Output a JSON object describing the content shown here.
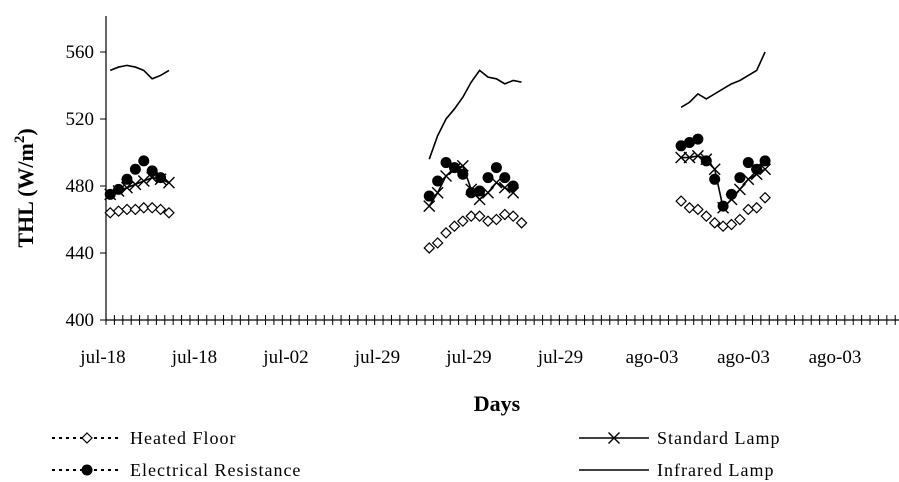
{
  "chart_data": {
    "type": "line",
    "xlabel": "Days",
    "ylabel": "THL (W/m²)",
    "ylabel_base": "THL (W/m",
    "ylabel_sup": "2",
    "ylabel_close": ")",
    "ylim": [
      400,
      570
    ],
    "yticks": [
      400,
      440,
      480,
      520,
      560
    ],
    "xtick_labels": [
      "jul-18",
      "jul-18",
      "jul-02",
      "jul-29",
      "jul-29",
      "jul-29",
      "ago-03",
      "ago-03",
      "ago-03"
    ],
    "x_slots": 96,
    "grid": false,
    "legend_position": "bottom",
    "legend_columns": 2,
    "series": [
      {
        "name": "Heated Floor",
        "marker": "diamond-open",
        "line": "dotted",
        "segments": [
          {
            "start": 0,
            "values": [
              464,
              465,
              466,
              466,
              467,
              467,
              466,
              464
            ]
          },
          {
            "start": 38,
            "values": [
              443,
              446,
              452,
              456,
              459,
              462,
              462,
              459,
              460,
              463,
              462,
              458
            ]
          },
          {
            "start": 68,
            "values": [
              471,
              467,
              466,
              462,
              458,
              456,
              457,
              460,
              466,
              467,
              473
            ]
          }
        ]
      },
      {
        "name": "Electrical Resistance",
        "marker": "circle-filled",
        "line": "dotted",
        "segments": [
          {
            "start": 0,
            "values": [
              475,
              478,
              484,
              490,
              495,
              489,
              485
            ]
          },
          {
            "start": 38,
            "values": [
              474,
              483,
              494,
              491,
              487,
              476,
              477,
              485,
              491,
              485,
              480
            ]
          },
          {
            "start": 68,
            "values": [
              504,
              506,
              508,
              495,
              484,
              468,
              475,
              485,
              494,
              490,
              495
            ]
          }
        ]
      },
      {
        "name": "Standard Lamp",
        "marker": "x",
        "line": "solid",
        "segments": [
          {
            "start": 0,
            "values": [
              475,
              477,
              479,
              481,
              483,
              485,
              484,
              482
            ]
          },
          {
            "start": 38,
            "values": [
              468,
              476,
              486,
              490,
              492,
              478,
              472,
              476,
              482,
              479,
              476
            ]
          },
          {
            "start": 68,
            "values": [
              497,
              497,
              498,
              496,
              490,
              467,
              472,
              478,
              484,
              487,
              490
            ]
          }
        ]
      },
      {
        "name": "Infrared Lamp",
        "marker": "none",
        "line": "solid",
        "segments": [
          {
            "start": 0,
            "values": [
              549,
              551,
              552,
              551,
              549,
              544,
              546,
              549
            ]
          },
          {
            "start": 38,
            "values": [
              496,
              510,
              520,
              526,
              533,
              542,
              549,
              545,
              544,
              541,
              543,
              542
            ]
          },
          {
            "start": 68,
            "values": [
              527,
              530,
              535,
              532,
              535,
              538,
              541,
              543,
              546,
              549,
              560
            ]
          }
        ]
      }
    ]
  }
}
